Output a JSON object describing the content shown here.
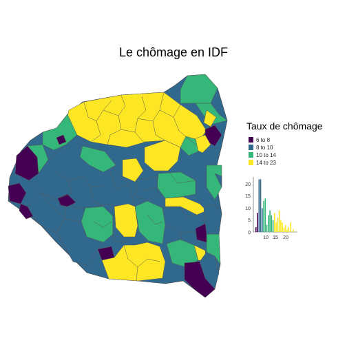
{
  "title": "Le chômage en IDF",
  "colors": {
    "c1": "#440154",
    "c2": "#31688e",
    "c3": "#35b779",
    "c4": "#fde725",
    "border": "#555555",
    "background": "#ffffff"
  },
  "legend": {
    "title": "Taux de chômage",
    "items": [
      {
        "label": "6 to 8",
        "color": "#440154"
      },
      {
        "label": "8 to 10",
        "color": "#31688e"
      },
      {
        "label": "10 to 14",
        "color": "#35b779"
      },
      {
        "label": "14 to 23",
        "color": "#fde725"
      }
    ]
  },
  "chart_data": {
    "type": "bar",
    "xlim": [
      6,
      23
    ],
    "ylim": [
      0,
      23
    ],
    "x_ticks": [
      "10",
      "15",
      "20"
    ],
    "y_ticks": [
      "0",
      "5",
      "10",
      "15",
      "20"
    ],
    "bins": [
      {
        "x": 7,
        "v": 2,
        "c": "#440154"
      },
      {
        "x": 7.6,
        "v": 8,
        "c": "#440154"
      },
      {
        "x": 8.2,
        "v": 22,
        "c": "#31688e"
      },
      {
        "x": 8.8,
        "v": 22,
        "c": "#31688e"
      },
      {
        "x": 9.4,
        "v": 10,
        "c": "#31688e"
      },
      {
        "x": 10.0,
        "v": 13,
        "c": "#35b779"
      },
      {
        "x": 10.6,
        "v": 14,
        "c": "#35b779"
      },
      {
        "x": 11.2,
        "v": 3,
        "c": "#35b779"
      },
      {
        "x": 11.8,
        "v": 7,
        "c": "#35b779"
      },
      {
        "x": 12.4,
        "v": 9,
        "c": "#35b779"
      },
      {
        "x": 13.0,
        "v": 7,
        "c": "#35b779"
      },
      {
        "x": 13.6,
        "v": 5,
        "c": "#35b779"
      },
      {
        "x": 14.2,
        "v": 8,
        "c": "#fde725"
      },
      {
        "x": 14.8,
        "v": 4,
        "c": "#fde725"
      },
      {
        "x": 15.4,
        "v": 6,
        "c": "#fde725"
      },
      {
        "x": 16.0,
        "v": 9,
        "c": "#fde725"
      },
      {
        "x": 16.6,
        "v": 5,
        "c": "#fde725"
      },
      {
        "x": 17.2,
        "v": 4,
        "c": "#fde725"
      },
      {
        "x": 17.8,
        "v": 2,
        "c": "#fde725"
      },
      {
        "x": 18.4,
        "v": 3,
        "c": "#fde725"
      },
      {
        "x": 19.0,
        "v": 1,
        "c": "#fde725"
      },
      {
        "x": 19.6,
        "v": 2,
        "c": "#fde725"
      },
      {
        "x": 20.4,
        "v": 4,
        "c": "#fde725"
      },
      {
        "x": 21.4,
        "v": 1,
        "c": "#fde725"
      }
    ]
  }
}
